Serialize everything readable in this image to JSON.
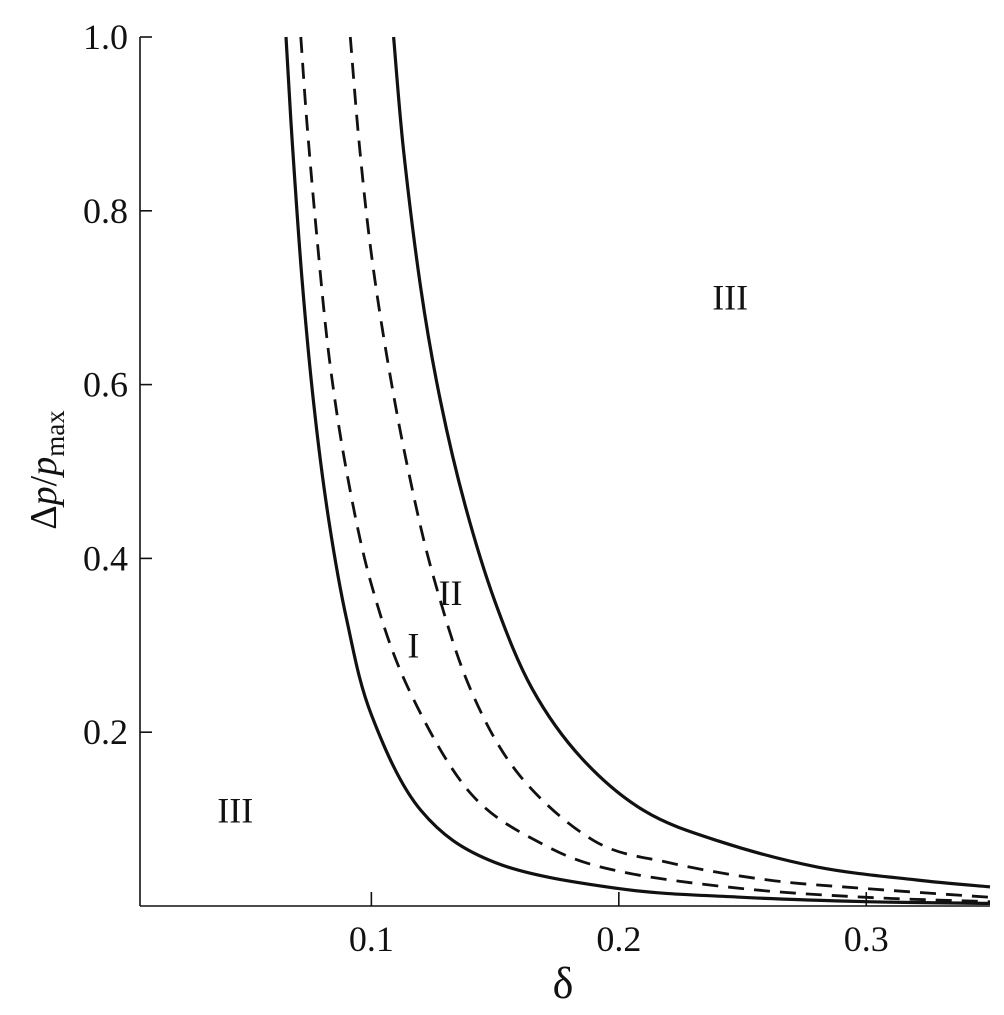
{
  "chart_data": {
    "type": "line",
    "title": "",
    "xlabel": "δ",
    "ylabel": {
      "delta": "Δ",
      "p": "p",
      "slash": "/",
      "p2": "p",
      "sub": "max"
    },
    "xlim": [
      0.0065,
      0.35
    ],
    "ylim": [
      0.0,
      1.0
    ],
    "x_ticks": [
      0.1,
      0.2,
      0.3
    ],
    "x_tick_labels": [
      "0.1",
      "0.2",
      "0.3"
    ],
    "y_ticks": [
      0.2,
      0.4,
      0.6,
      0.8,
      1.0
    ],
    "y_tick_labels": [
      "0.2",
      "0.4",
      "0.6",
      "0.8",
      "1.0"
    ],
    "grid": false,
    "legend": "none",
    "series": [
      {
        "style": "solid",
        "x": [
          0.0655,
          0.068,
          0.072,
          0.077,
          0.083,
          0.09,
          0.1,
          0.12,
          0.15,
          0.2,
          0.25,
          0.3,
          0.35
        ],
        "y": [
          1.0,
          0.88,
          0.72,
          0.57,
          0.44,
          0.33,
          0.22,
          0.11,
          0.05,
          0.02,
          0.01,
          0.005,
          0.003
        ]
      },
      {
        "style": "dashed",
        "x": [
          0.0715,
          0.074,
          0.078,
          0.083,
          0.09,
          0.1,
          0.115,
          0.14,
          0.17,
          0.2,
          0.25,
          0.3,
          0.35
        ],
        "y": [
          1.0,
          0.9,
          0.77,
          0.63,
          0.5,
          0.37,
          0.25,
          0.13,
          0.07,
          0.04,
          0.02,
          0.01,
          0.005
        ]
      },
      {
        "style": "dashed",
        "x": [
          0.0915,
          0.095,
          0.1,
          0.107,
          0.115,
          0.125,
          0.14,
          0.16,
          0.19,
          0.22,
          0.26,
          0.3,
          0.35
        ],
        "y": [
          1.0,
          0.88,
          0.75,
          0.62,
          0.5,
          0.38,
          0.25,
          0.15,
          0.075,
          0.05,
          0.03,
          0.02,
          0.01
        ]
      },
      {
        "style": "solid",
        "x": [
          0.109,
          0.113,
          0.12,
          0.128,
          0.138,
          0.15,
          0.165,
          0.185,
          0.21,
          0.24,
          0.28,
          0.32,
          0.35
        ],
        "y": [
          1.0,
          0.87,
          0.71,
          0.58,
          0.46,
          0.35,
          0.25,
          0.17,
          0.11,
          0.075,
          0.045,
          0.03,
          0.022
        ]
      }
    ],
    "annotations": [
      {
        "text": "III",
        "x": 0.045,
        "y": 0.11
      },
      {
        "text": "I",
        "x": 0.117,
        "y": 0.3
      },
      {
        "text": "II",
        "x": 0.132,
        "y": 0.36
      },
      {
        "text": "III",
        "x": 0.245,
        "y": 0.7
      }
    ]
  }
}
